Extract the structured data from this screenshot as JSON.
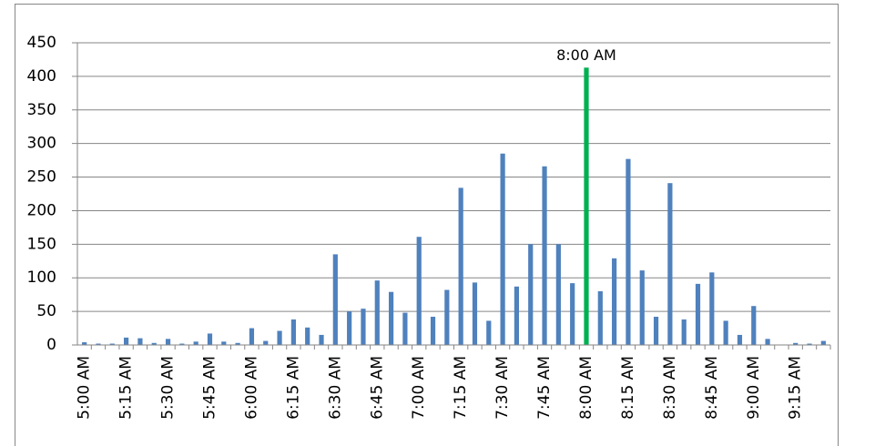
{
  "chart_data": {
    "type": "bar",
    "categories": [
      "5:00 AM",
      null,
      null,
      "5:15 AM",
      null,
      null,
      "5:30 AM",
      null,
      null,
      "5:45 AM",
      null,
      null,
      "6:00 AM",
      null,
      null,
      "6:15 AM",
      null,
      null,
      "6:30 AM",
      null,
      null,
      "6:45 AM",
      null,
      null,
      "7:00 AM",
      null,
      null,
      "7:15 AM",
      null,
      null,
      "7:30 AM",
      null,
      null,
      "7:45 AM",
      null,
      null,
      "8:00 AM",
      null,
      null,
      "8:15 AM",
      null,
      null,
      "8:30 AM",
      null,
      null,
      "8:45 AM",
      null,
      null,
      "9:00 AM",
      null,
      null,
      "9:15 AM",
      null,
      null
    ],
    "values": [
      4,
      2,
      2,
      11,
      10,
      3,
      9,
      2,
      5,
      17,
      5,
      3,
      25,
      6,
      21,
      38,
      26,
      15,
      135,
      50,
      54,
      96,
      79,
      48,
      161,
      42,
      82,
      234,
      93,
      36,
      285,
      87,
      150,
      266,
      150,
      92,
      413,
      80,
      129,
      277,
      111,
      42,
      241,
      38,
      91,
      108,
      36,
      15,
      58,
      9,
      0,
      3,
      2,
      6
    ],
    "color": "#4f81bd",
    "annotation": {
      "label": "8:00 AM",
      "color": "#00b050"
    },
    "ylim": [
      0,
      450
    ],
    "yticks": [
      0,
      50,
      100,
      150,
      200,
      250,
      300,
      350,
      400,
      450
    ],
    "grid": true
  }
}
